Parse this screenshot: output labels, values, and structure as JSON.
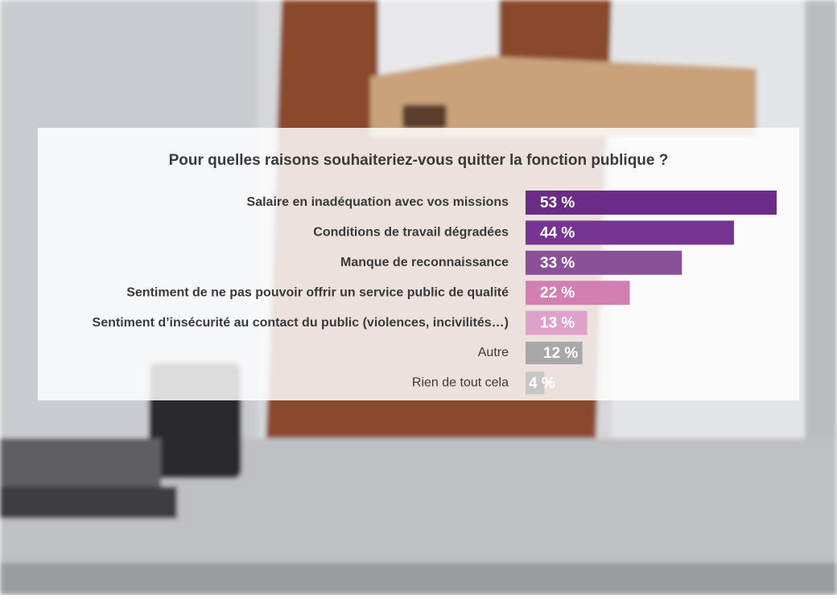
{
  "chart_data": {
    "type": "bar",
    "orientation": "horizontal",
    "title": "Pour quelles raisons souhaiteriez-vous quitter la fonction publique ?",
    "categories": [
      "Salaire en inadéquation avec vos missions",
      "Conditions de travail dégradées",
      "Manque de reconnaissance",
      "Sentiment de ne pas pouvoir offrir un service public de qualité",
      "Sentiment d’insécurité au contact du public (violences, incivilités…)",
      "Autre",
      "Rien de tout cela"
    ],
    "values": [
      53,
      44,
      33,
      22,
      13,
      12,
      4
    ],
    "value_labels": [
      "53 %",
      "44 %",
      "33 %",
      "22 %",
      "13 %",
      "12 %",
      "4 %"
    ],
    "colors": [
      "#6a2c86",
      "#773593",
      "#8a5197",
      "#d27fb4",
      "#dea1c9",
      "#a8a8a8",
      "#c6c6c6"
    ]
  }
}
